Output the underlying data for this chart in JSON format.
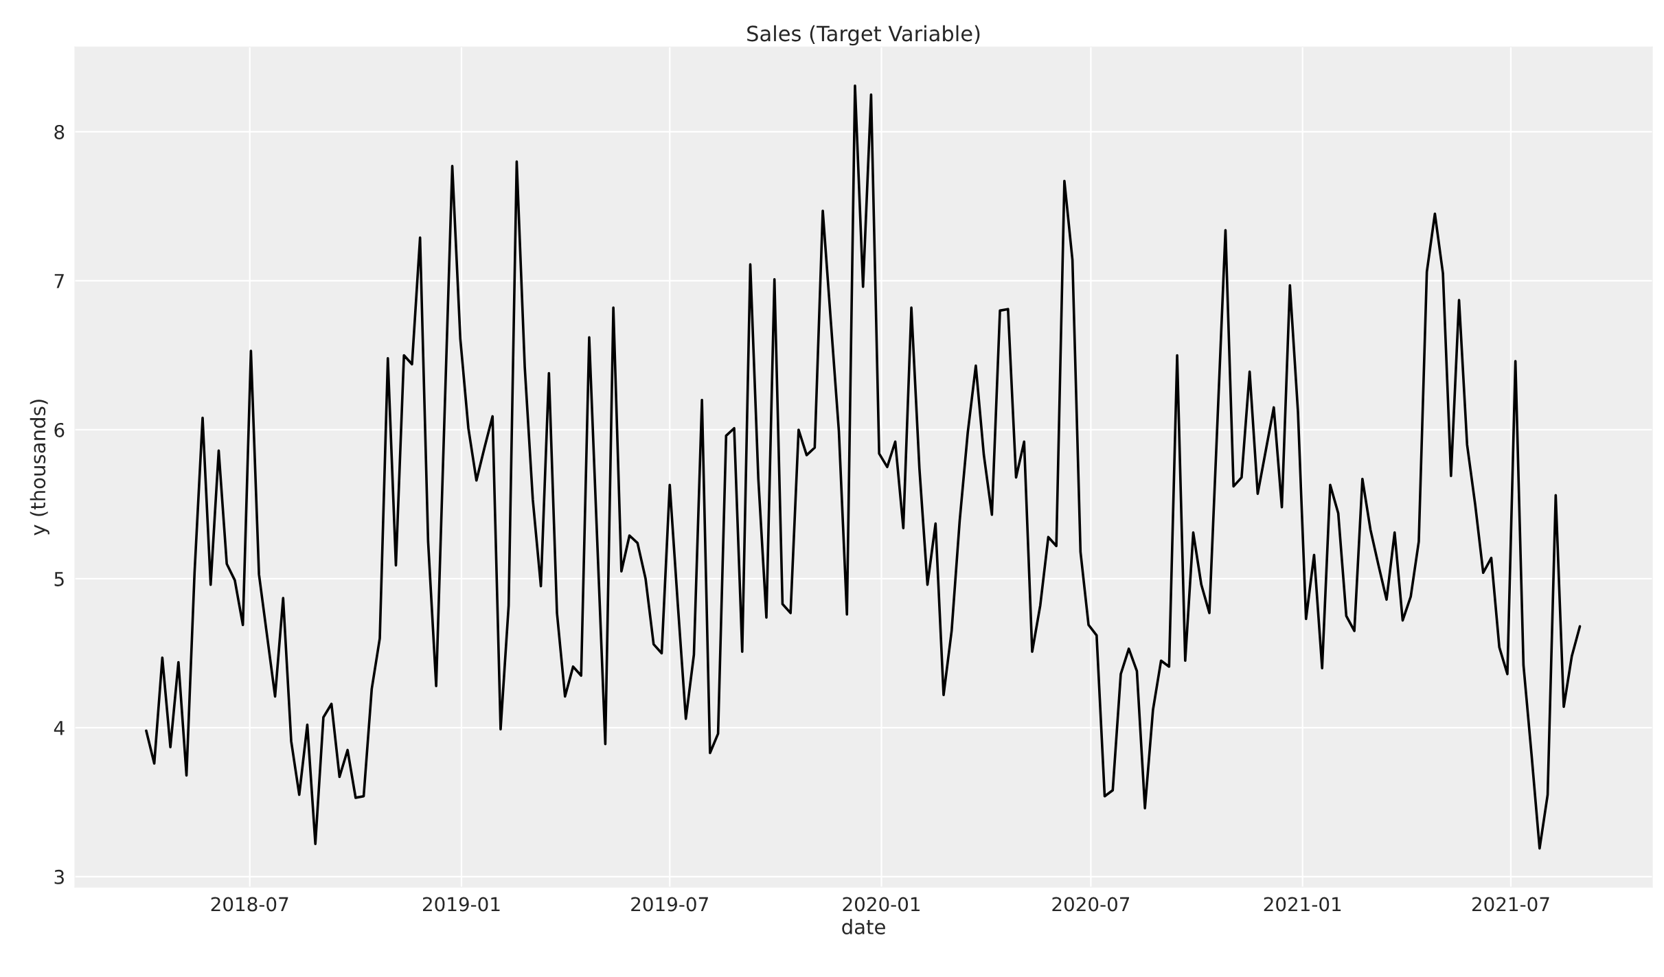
{
  "chart_data": {
    "type": "line",
    "title": "Sales (Target Variable)",
    "xlabel": "date",
    "ylabel": "y (thousands)",
    "x": [
      "2018-04-02",
      "2018-04-09",
      "2018-04-16",
      "2018-04-23",
      "2018-04-30",
      "2018-05-07",
      "2018-05-14",
      "2018-05-21",
      "2018-05-28",
      "2018-06-04",
      "2018-06-11",
      "2018-06-18",
      "2018-06-25",
      "2018-07-02",
      "2018-07-09",
      "2018-07-16",
      "2018-07-23",
      "2018-07-30",
      "2018-08-06",
      "2018-08-13",
      "2018-08-20",
      "2018-08-27",
      "2018-09-03",
      "2018-09-10",
      "2018-09-17",
      "2018-09-24",
      "2018-10-01",
      "2018-10-08",
      "2018-10-15",
      "2018-10-22",
      "2018-10-29",
      "2018-11-05",
      "2018-11-12",
      "2018-11-19",
      "2018-11-26",
      "2018-12-03",
      "2018-12-10",
      "2018-12-17",
      "2018-12-24",
      "2018-12-31",
      "2019-01-07",
      "2019-01-14",
      "2019-01-21",
      "2019-01-28",
      "2019-02-04",
      "2019-02-11",
      "2019-02-18",
      "2019-02-25",
      "2019-03-04",
      "2019-03-11",
      "2019-03-18",
      "2019-03-25",
      "2019-04-01",
      "2019-04-08",
      "2019-04-15",
      "2019-04-22",
      "2019-04-29",
      "2019-05-06",
      "2019-05-13",
      "2019-05-20",
      "2019-05-27",
      "2019-06-03",
      "2019-06-10",
      "2019-06-17",
      "2019-06-24",
      "2019-07-01",
      "2019-07-08",
      "2019-07-15",
      "2019-07-22",
      "2019-07-29",
      "2019-08-05",
      "2019-08-12",
      "2019-08-19",
      "2019-08-26",
      "2019-09-02",
      "2019-09-09",
      "2019-09-16",
      "2019-09-23",
      "2019-09-30",
      "2019-10-07",
      "2019-10-14",
      "2019-10-21",
      "2019-10-28",
      "2019-11-04",
      "2019-11-11",
      "2019-11-18",
      "2019-11-25",
      "2019-12-02",
      "2019-12-09",
      "2019-12-16",
      "2019-12-23",
      "2019-12-30",
      "2020-01-06",
      "2020-01-13",
      "2020-01-20",
      "2020-01-27",
      "2020-02-03",
      "2020-02-10",
      "2020-02-17",
      "2020-02-24",
      "2020-03-02",
      "2020-03-09",
      "2020-03-16",
      "2020-03-23",
      "2020-03-30",
      "2020-04-06",
      "2020-04-13",
      "2020-04-20",
      "2020-04-27",
      "2020-05-04",
      "2020-05-11",
      "2020-05-18",
      "2020-05-25",
      "2020-06-01",
      "2020-06-08",
      "2020-06-15",
      "2020-06-22",
      "2020-06-29",
      "2020-07-06",
      "2020-07-13",
      "2020-07-20",
      "2020-07-27",
      "2020-08-03",
      "2020-08-10",
      "2020-08-17",
      "2020-08-24",
      "2020-08-31",
      "2020-09-07",
      "2020-09-14",
      "2020-09-21",
      "2020-09-28",
      "2020-10-05",
      "2020-10-12",
      "2020-10-19",
      "2020-10-26",
      "2020-11-02",
      "2020-11-09",
      "2020-11-16",
      "2020-11-23",
      "2020-11-30",
      "2020-12-07",
      "2020-12-14",
      "2020-12-21",
      "2020-12-28",
      "2021-01-04",
      "2021-01-11",
      "2021-01-18",
      "2021-01-25",
      "2021-02-01",
      "2021-02-08",
      "2021-02-15",
      "2021-02-22",
      "2021-03-01",
      "2021-03-08",
      "2021-03-15",
      "2021-03-22",
      "2021-03-29",
      "2021-04-05",
      "2021-04-12",
      "2021-04-19",
      "2021-04-26",
      "2021-05-03",
      "2021-05-10",
      "2021-05-17",
      "2021-05-24",
      "2021-05-31",
      "2021-06-07",
      "2021-06-14",
      "2021-06-21",
      "2021-06-28",
      "2021-07-05",
      "2021-07-12",
      "2021-07-19",
      "2021-07-26",
      "2021-08-02",
      "2021-08-09",
      "2021-08-16",
      "2021-08-23",
      "2021-08-30"
    ],
    "series": [
      {
        "color": "#000000",
        "values": [
          3.98,
          3.76,
          4.47,
          3.87,
          4.44,
          3.68,
          5.04,
          6.08,
          4.96,
          5.86,
          5.1,
          4.99,
          4.69,
          6.53,
          5.03,
          4.62,
          4.21,
          4.87,
          3.91,
          3.55,
          4.02,
          3.22,
          4.07,
          4.16,
          3.67,
          3.85,
          3.53,
          3.54,
          4.26,
          4.6,
          6.48,
          5.09,
          6.5,
          6.44,
          7.29,
          5.25,
          4.28,
          6.03,
          7.77,
          6.61,
          6.01,
          5.66,
          5.88,
          6.09,
          3.99,
          4.82,
          7.8,
          6.42,
          5.53,
          4.95,
          6.38,
          4.77,
          4.21,
          4.41,
          4.35,
          6.62,
          5.25,
          3.89,
          6.82,
          5.05,
          5.29,
          5.24,
          5.0,
          4.56,
          4.5,
          5.63,
          4.83,
          4.06,
          4.49,
          6.2,
          3.83,
          3.96,
          5.96,
          6.01,
          4.51,
          7.11,
          5.67,
          4.74,
          7.01,
          4.83,
          4.77,
          6.0,
          5.83,
          5.88,
          7.47,
          6.73,
          5.99,
          4.76,
          8.31,
          6.96,
          8.25,
          5.84,
          5.75,
          5.92,
          5.34,
          6.82,
          5.74,
          4.96,
          5.37,
          4.22,
          4.65,
          5.39,
          5.98,
          6.43,
          5.83,
          5.43,
          6.8,
          6.81,
          5.68,
          5.92,
          4.51,
          4.82,
          5.28,
          5.22,
          7.67,
          7.14,
          5.18,
          4.69,
          4.62,
          3.54,
          3.58,
          4.36,
          4.53,
          4.38,
          3.46,
          4.12,
          4.45,
          4.41,
          6.5,
          4.45,
          5.31,
          4.96,
          4.77,
          6.05,
          7.34,
          5.62,
          5.68,
          6.39,
          5.57,
          5.86,
          6.15,
          5.48,
          6.97,
          6.12,
          4.73,
          5.16,
          4.4,
          5.63,
          5.44,
          4.75,
          4.65,
          5.67,
          5.33,
          5.09,
          4.86,
          5.31,
          4.72,
          4.88,
          5.25,
          7.06,
          7.45,
          7.05,
          5.69,
          6.87,
          5.9,
          5.5,
          5.04,
          5.14,
          4.54,
          4.36,
          6.46,
          4.42,
          3.82,
          3.19,
          3.55,
          5.56,
          4.14,
          4.48,
          4.68
        ]
      }
    ],
    "xlim": [
      "2018-01-30",
      "2021-11-01"
    ],
    "xticks": [
      {
        "value": "2018-07-01",
        "label": "2018-07"
      },
      {
        "value": "2019-01-01",
        "label": "2019-01"
      },
      {
        "value": "2019-07-01",
        "label": "2019-07"
      },
      {
        "value": "2020-01-01",
        "label": "2020-01"
      },
      {
        "value": "2020-07-01",
        "label": "2020-07"
      },
      {
        "value": "2021-01-01",
        "label": "2021-01"
      },
      {
        "value": "2021-07-01",
        "label": "2021-07"
      }
    ],
    "ylim": [
      2.93,
      8.57
    ],
    "yticks": [
      3,
      4,
      5,
      6,
      7,
      8
    ],
    "grid": true,
    "line_style": "solid",
    "marker": "none"
  }
}
